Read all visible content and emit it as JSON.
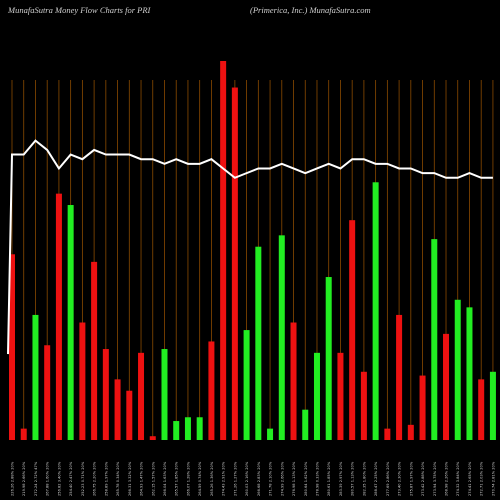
{
  "header": {
    "left_title": "MunafaSutra  Money Flow  Charts for PRI",
    "right_title": "(Primerica,  Inc.) MunafaSutra.com"
  },
  "colors": {
    "background": "#000000",
    "up_bar": "#22ee22",
    "down_bar": "#ee1111",
    "grid": "#8a4a00",
    "price_line": "#ffffff",
    "axis_text": "#cfcfcf"
  },
  "chart_data": {
    "type": "bar",
    "grid": "vertical",
    "bar_value_range": [
      0,
      100
    ],
    "line_value_range": [
      0,
      100
    ],
    "categories": [
      "226.26 2.88% 20%",
      "219.98 2.66% 20%",
      "272.24 2.72% 47%",
      "267.88 1.60% 20%",
      "256.82 3.40% 20%",
      "254.40 2.47% 20%",
      "252.23 0.71% 20%",
      "266.75 2.20% 20%",
      "258.89 1.97% 20%",
      "265.78 0.34% 20%",
      "266.31 3.32% 20%",
      "264.93 1.47% 20%",
      "262.15 1.57% 20%",
      "266.04 1.63% 20%",
      "265.57 1.85% 20%",
      "266.07 1.28% 20%",
      "264.59 0.74% 20%",
      "265.26 1.36% 20%",
      "274.43 2.91% 20%",
      "271.26 1.27% 20%",
      "260.03 2.16% 20%",
      "266.68 2.83% 20%",
      "271.78 2.10% 20%",
      "274.99 2.66% 20%",
      "276.98 1.13% 20%",
      "280.64 1.62% 20%",
      "278.98 0.33% 20%",
      "280.61 1.85% 20%",
      "283.39 2.97% 20%",
      "280.57 1.13% 20%",
      "282.35 1.80% 20%",
      "288.47 2.25% 20%",
      "277.69 2.86% 20%",
      "273.40 2.30% 20%",
      "275.87 1.97% 20%",
      "273.42 2.88% 20%",
      "273.94 3.75% 20%",
      "268.98 2.26% 20%",
      "274.32 3.84% 20%",
      "274.41 2.65% 20%",
      "272.71 2.03% 20%",
      "270.74 2.81% 20%"
    ],
    "colors": [
      "red",
      "red",
      "green",
      "red",
      "red",
      "green",
      "red",
      "red",
      "red",
      "red",
      "red",
      "red",
      "red",
      "green",
      "green",
      "green",
      "green",
      "red",
      "red",
      "red",
      "green",
      "green",
      "green",
      "green",
      "red",
      "green",
      "green",
      "green",
      "red",
      "red",
      "red",
      "green",
      "red",
      "red",
      "red",
      "red",
      "green",
      "red",
      "green",
      "green",
      "red",
      "green"
    ],
    "values": [
      49,
      3,
      33,
      25,
      65,
      62,
      31,
      47,
      24,
      16,
      13,
      23,
      1,
      24,
      5,
      6,
      6,
      26,
      100,
      93,
      29,
      51,
      3,
      54,
      31,
      8,
      23,
      43,
      23,
      58,
      18,
      68,
      3,
      33,
      4,
      17,
      53,
      28,
      37,
      35,
      16,
      18
    ],
    "line_values": [
      71,
      71,
      74,
      72,
      68,
      71,
      70,
      72,
      71,
      71,
      71,
      70,
      70,
      69,
      70,
      69,
      69,
      70,
      68,
      66,
      67,
      68,
      68,
      69,
      68,
      67,
      68,
      69,
      68,
      70,
      70,
      69,
      69,
      68,
      68,
      67,
      67,
      66,
      66,
      67,
      66,
      66
    ]
  }
}
